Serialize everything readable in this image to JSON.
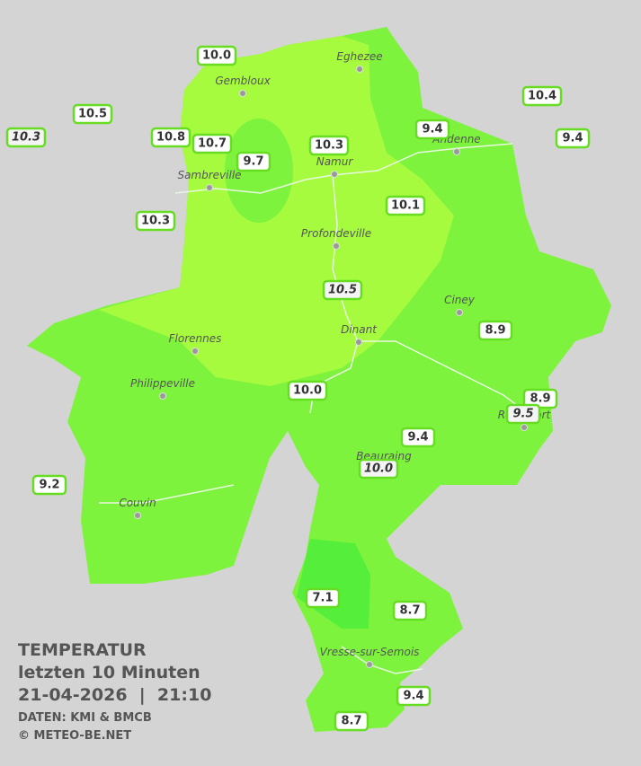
{
  "legend": {
    "title": "TEMPERATUR",
    "subtitle": "letzten 10 Minuten",
    "timestamp": "21-04-2026  |  21:10",
    "source": "DATEN: KMI & BMCB",
    "copyright": "© METEO-BE.NET"
  },
  "cities": [
    "Eghezee",
    "Gembloux",
    "Andenne",
    "Namur",
    "Sambreville",
    "Profondeville",
    "Ciney",
    "Dinant",
    "Florennes",
    "Philippeville",
    "Couvin",
    "Vresse-sur-Semois",
    "Rochefort",
    "Beauraing"
  ],
  "stations": [
    {
      "label": "10.0",
      "italic": false
    },
    {
      "label": "10.5",
      "italic": false
    },
    {
      "label": "10.3",
      "italic": true
    },
    {
      "label": "10.8",
      "italic": false
    },
    {
      "label": "10.7",
      "italic": false
    },
    {
      "label": "9.7",
      "italic": false
    },
    {
      "label": "10.3",
      "italic": false
    },
    {
      "label": "9.4",
      "italic": false
    },
    {
      "label": "10.4",
      "italic": false
    },
    {
      "label": "9.4",
      "italic": false
    },
    {
      "label": "10.3",
      "italic": false
    },
    {
      "label": "10.1",
      "italic": false
    },
    {
      "label": "10.5",
      "italic": true
    },
    {
      "label": "8.9",
      "italic": false
    },
    {
      "label": "10.0",
      "italic": false
    },
    {
      "label": "8.9",
      "italic": false
    },
    {
      "label": "9.5",
      "italic": true
    },
    {
      "label": "9.4",
      "italic": false
    },
    {
      "label": "10.0",
      "italic": true
    },
    {
      "label": "9.2",
      "italic": false
    },
    {
      "label": "7.1",
      "italic": false
    },
    {
      "label": "8.7",
      "italic": false
    },
    {
      "label": "9.4",
      "italic": false
    },
    {
      "label": "8.7",
      "italic": false
    }
  ]
}
